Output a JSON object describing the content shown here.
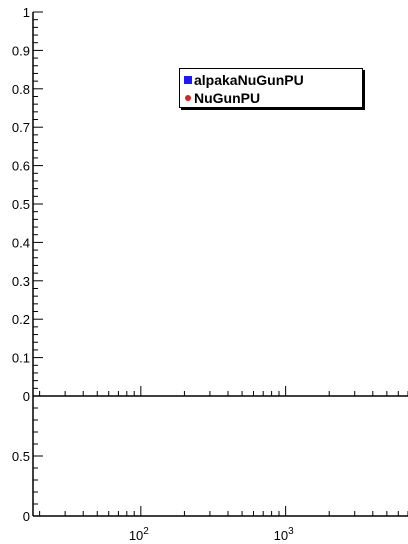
{
  "chart_data": [
    {
      "type": "line",
      "panel": "upper",
      "x_scale": "log",
      "xlim": [
        18,
        7000
      ],
      "ylim": [
        0,
        1
      ],
      "y_ticks": [
        "0",
        "0.1",
        "0.2",
        "0.3",
        "0.4",
        "0.5",
        "0.6",
        "0.7",
        "0.8",
        "0.9",
        "1"
      ],
      "series": [
        {
          "name": "alpakaNuGunPU",
          "color": "#1a1aff",
          "values": []
        },
        {
          "name": "NuGunPU",
          "color": "#e02020",
          "values": []
        }
      ],
      "legend_position": "top-right"
    },
    {
      "type": "line",
      "panel": "lower",
      "x_scale": "log",
      "xlim": [
        18,
        7000
      ],
      "ylim": [
        0,
        1
      ],
      "y_ticks": [
        "0",
        "0.5"
      ],
      "x_ticks": [
        {
          "value": 100,
          "base": "10",
          "exp": "2"
        },
        {
          "value": 1000,
          "base": "10",
          "exp": "3"
        }
      ],
      "series": []
    }
  ]
}
